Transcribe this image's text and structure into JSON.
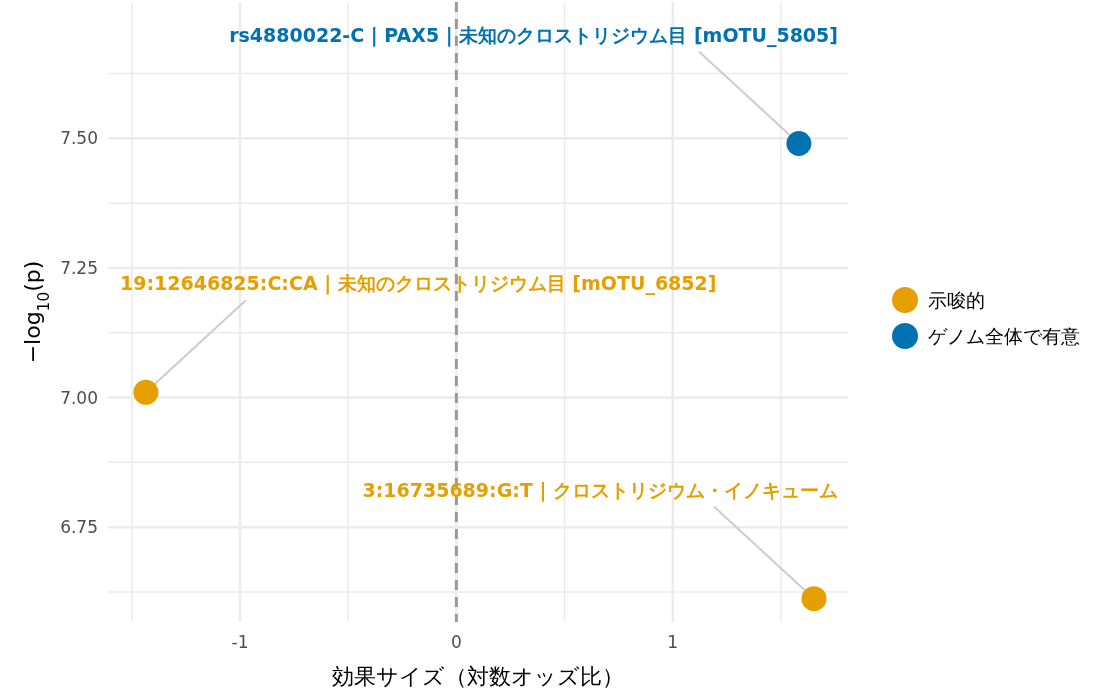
{
  "chart_data": {
    "type": "scatter",
    "xlabel": "効果サイズ（対数オッズ比）",
    "ylabel": "−log$_{10}$(p)",
    "xlim": [
      -1.61,
      1.81
    ],
    "ylim": [
      6.567,
      7.763
    ],
    "xticks": [
      {
        "value": -1.5,
        "label": null
      },
      {
        "value": -1,
        "label": "-1"
      },
      {
        "value": -0.5,
        "label": null
      },
      0,
      {
        "value": 0.5,
        "label": null
      },
      1,
      {
        "value": 1.5,
        "label": null
      }
    ],
    "yticks": [
      {
        "value": 6.625,
        "label": null
      },
      6.75,
      {
        "value": 6.875,
        "label": null
      },
      {
        "value": 7,
        "label": "7.00"
      },
      {
        "value": 7.125,
        "label": null
      },
      7.25,
      {
        "value": 7.375,
        "label": null
      },
      {
        "value": 7.5,
        "label": "7.50"
      },
      {
        "value": 7.625,
        "label": null
      }
    ],
    "grid": true,
    "legend": "right",
    "marker": "circle",
    "ref_lines": [
      {
        "axis": "x",
        "value": 0,
        "color": "#999999",
        "line_style": "dashed"
      }
    ],
    "series": [
      {
        "name": "示唆的",
        "color": "#E69F00",
        "x": [
          -1.435,
          1.653
        ],
        "values": [
          7.01,
          6.612
        ]
      },
      {
        "name": "ゲノム全体で有意",
        "color": "#0072B2",
        "x": [
          1.583
        ],
        "values": [
          7.49
        ]
      }
    ],
    "annotations": [
      {
        "text": "rs4880022-C | PAX5 | 未知のクロストリジウム目 [mOTU_5805]",
        "x": 1.583,
        "y": 7.49
      },
      {
        "text": "19:12646825:C:CA | 未知のクロストリジウム目 [mOTU_6852]",
        "x": -1.435,
        "y": 7.01
      },
      {
        "text": "3:16735689:G:T | クロストリジウム・イノキューム",
        "x": 1.653,
        "y": 6.612
      }
    ]
  }
}
